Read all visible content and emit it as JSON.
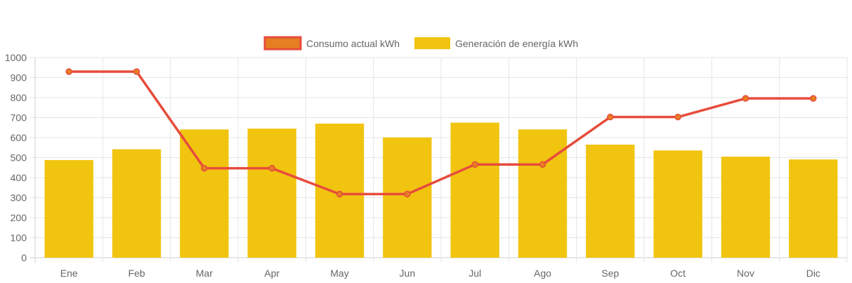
{
  "chart_data": {
    "type": "bar",
    "categories": [
      "Ene",
      "Feb",
      "Mar",
      "Apr",
      "May",
      "Jun",
      "Jul",
      "Ago",
      "Sep",
      "Oct",
      "Nov",
      "Dic"
    ],
    "series": [
      {
        "name": "Consumo actual kWh",
        "type": "line",
        "values": [
          930,
          930,
          447,
          447,
          318,
          318,
          466,
          466,
          703,
          703,
          796,
          796
        ],
        "color": "#e74c3c",
        "point_color": "#e67e22"
      },
      {
        "name": "Generación de energía kWh",
        "type": "bar",
        "values": [
          488,
          542,
          641,
          645,
          670,
          601,
          675,
          641,
          565,
          536,
          505,
          491
        ],
        "color": "#f1c40f"
      }
    ],
    "ylim": [
      0,
      1000
    ],
    "yticks": [
      0,
      100,
      200,
      300,
      400,
      500,
      600,
      700,
      800,
      900,
      1000
    ],
    "grid": true,
    "legend_position": "top-center"
  }
}
